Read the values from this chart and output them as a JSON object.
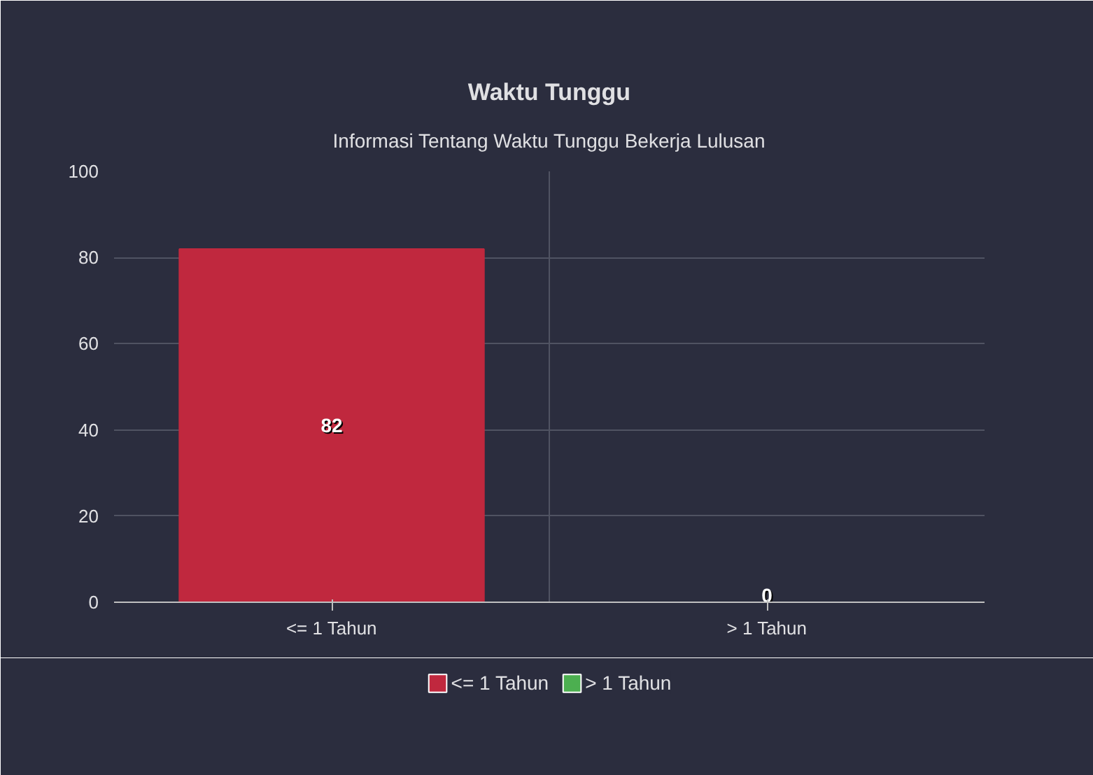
{
  "chart_data": {
    "type": "bar",
    "title": "Waktu Tunggu",
    "subtitle": "Informasi Tentang Waktu Tunggu Bekerja Lulusan",
    "categories": [
      "<= 1 Tahun",
      "> 1 Tahun"
    ],
    "series": [
      {
        "name": "<= 1 Tahun",
        "color": "#c0283e",
        "values": [
          82,
          null
        ]
      },
      {
        "name": "> 1 Tahun",
        "color": "#4caf50",
        "values": [
          null,
          0
        ]
      }
    ],
    "ylim": [
      0,
      100
    ],
    "yticks": [
      0,
      20,
      40,
      60,
      80,
      100
    ],
    "grid": true,
    "legend": "bottom",
    "data_labels": true
  }
}
